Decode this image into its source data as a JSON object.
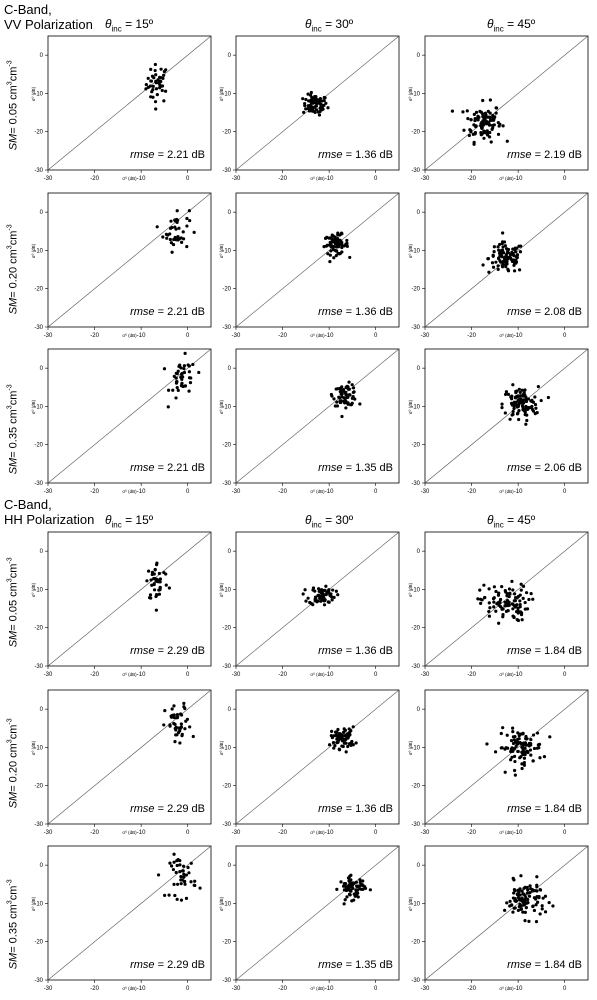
{
  "figure": {
    "sections": [
      {
        "band": "C-Band,",
        "polarization": "VV Polarization",
        "theta_symbol": "θ",
        "theta_sub": "inc",
        "columns": [
          " = 15º",
          " = 30º",
          " = 45º"
        ],
        "rows": [
          {
            "sm_label": "SM",
            "sm_value": "= 0.05 cm",
            "sm_exp": "3",
            "sm_unit": "cm",
            "sm_exp2": "-3"
          },
          {
            "sm_label": "SM",
            "sm_value": "= 0.20 cm",
            "sm_exp": "3",
            "sm_unit": "cm",
            "sm_exp2": "-3"
          },
          {
            "sm_label": "SM",
            "sm_value": "= 0.35 cm",
            "sm_exp": "3",
            "sm_unit": "cm",
            "sm_exp2": "-3"
          }
        ]
      },
      {
        "band": "C-Band,",
        "polarization": "HH Polarization",
        "theta_symbol": "θ",
        "theta_sub": "inc",
        "columns": [
          " = 15º",
          " = 30º",
          " = 45º"
        ],
        "rows": [
          {
            "sm_label": "SM",
            "sm_value": "= 0.05 cm",
            "sm_exp": "3",
            "sm_unit": "cm",
            "sm_exp2": "-3"
          },
          {
            "sm_label": "SM",
            "sm_value": "= 0.20 cm",
            "sm_exp": "3",
            "sm_unit": "cm",
            "sm_exp2": "-3"
          },
          {
            "sm_label": "SM",
            "sm_value": "= 0.35 cm",
            "sm_exp": "3",
            "sm_unit": "cm",
            "sm_exp2": "-3"
          }
        ]
      }
    ]
  },
  "chart_data": {
    "type": "scatter",
    "xlabel": "σ⁰ (dB)",
    "ylabel": "σ⁰ (dB)",
    "xlim": [
      -30,
      5
    ],
    "ylim": [
      -30,
      5
    ],
    "xticks": [
      -30,
      -20,
      -10,
      0
    ],
    "yticks": [
      0,
      -10,
      -20,
      -30
    ],
    "reference_line": "1:1",
    "rmse_label": "rmse",
    "panels": [
      {
        "section": "VV",
        "sm": "0.05",
        "theta": "15º",
        "rmse": "= 2.21 dB",
        "cluster": {
          "cx": -6.5,
          "cy": -7.5,
          "n": 42,
          "sx": 1.2,
          "sy": 2.5
        }
      },
      {
        "section": "VV",
        "sm": "0.05",
        "theta": "30º",
        "rmse": "= 1.36 dB",
        "cluster": {
          "cx": -13.0,
          "cy": -13.0,
          "n": 70,
          "sx": 1.3,
          "sy": 1.3
        }
      },
      {
        "section": "VV",
        "sm": "0.05",
        "theta": "45º",
        "rmse": "= 2.19 dB",
        "cluster": {
          "cx": -17.5,
          "cy": -17.5,
          "n": 100,
          "sx": 1.9,
          "sy": 2.5
        }
      },
      {
        "section": "VV",
        "sm": "0.20",
        "theta": "15º",
        "rmse": "= 2.21 dB",
        "cluster": {
          "cx": -2.5,
          "cy": -4.5,
          "n": 42,
          "sx": 1.4,
          "sy": 2.8
        }
      },
      {
        "section": "VV",
        "sm": "0.20",
        "theta": "30º",
        "rmse": "= 1.36 dB",
        "cluster": {
          "cx": -8.5,
          "cy": -8.5,
          "n": 70,
          "sx": 1.3,
          "sy": 1.3
        }
      },
      {
        "section": "VV",
        "sm": "0.20",
        "theta": "45º",
        "rmse": "= 2.08 dB",
        "cluster": {
          "cx": -12.5,
          "cy": -12.0,
          "n": 100,
          "sx": 1.9,
          "sy": 2.0
        }
      },
      {
        "section": "VV",
        "sm": "0.35",
        "theta": "15º",
        "rmse": "= 2.21 dB",
        "cluster": {
          "cx": -1.0,
          "cy": -3.0,
          "n": 42,
          "sx": 1.4,
          "sy": 2.8
        }
      },
      {
        "section": "VV",
        "sm": "0.35",
        "theta": "30º",
        "rmse": "= 1.35 dB",
        "cluster": {
          "cx": -6.5,
          "cy": -7.0,
          "n": 70,
          "sx": 1.3,
          "sy": 1.4
        }
      },
      {
        "section": "VV",
        "sm": "0.35",
        "theta": "45º",
        "rmse": "= 2.06 dB",
        "cluster": {
          "cx": -9.5,
          "cy": -9.5,
          "n": 100,
          "sx": 1.9,
          "sy": 2.3
        }
      },
      {
        "section": "HH",
        "sm": "0.05",
        "theta": "15º",
        "rmse": "= 2.29 dB",
        "cluster": {
          "cx": -6.5,
          "cy": -8.0,
          "n": 42,
          "sx": 1.2,
          "sy": 2.6
        }
      },
      {
        "section": "HH",
        "sm": "0.05",
        "theta": "30º",
        "rmse": "= 1.36 dB",
        "cluster": {
          "cx": -11.5,
          "cy": -11.5,
          "n": 70,
          "sx": 1.4,
          "sy": 1.3
        }
      },
      {
        "section": "HH",
        "sm": "0.05",
        "theta": "45º",
        "rmse": "= 1.84 dB",
        "cluster": {
          "cx": -13.0,
          "cy": -13.5,
          "n": 100,
          "sx": 2.6,
          "sy": 2.4
        }
      },
      {
        "section": "HH",
        "sm": "0.20",
        "theta": "15º",
        "rmse": "= 2.29 dB",
        "cluster": {
          "cx": -2.0,
          "cy": -4.5,
          "n": 42,
          "sx": 1.4,
          "sy": 2.8
        }
      },
      {
        "section": "HH",
        "sm": "0.20",
        "theta": "30º",
        "rmse": "= 1.36 dB",
        "cluster": {
          "cx": -7.0,
          "cy": -7.5,
          "n": 70,
          "sx": 1.3,
          "sy": 1.4
        }
      },
      {
        "section": "HH",
        "sm": "0.20",
        "theta": "45º",
        "rmse": "= 1.84 dB",
        "cluster": {
          "cx": -9.5,
          "cy": -10.0,
          "n": 100,
          "sx": 2.4,
          "sy": 2.3
        }
      },
      {
        "section": "HH",
        "sm": "0.35",
        "theta": "15º",
        "rmse": "= 2.29 dB",
        "cluster": {
          "cx": -1.0,
          "cy": -3.0,
          "n": 42,
          "sx": 1.4,
          "sy": 2.8
        }
      },
      {
        "section": "HH",
        "sm": "0.35",
        "theta": "30º",
        "rmse": "= 1.35 dB",
        "cluster": {
          "cx": -5.0,
          "cy": -6.0,
          "n": 70,
          "sx": 1.4,
          "sy": 1.4
        }
      },
      {
        "section": "HH",
        "sm": "0.35",
        "theta": "45º",
        "rmse": "= 1.84 dB",
        "cluster": {
          "cx": -8.5,
          "cy": -9.0,
          "n": 100,
          "sx": 2.2,
          "sy": 2.3
        }
      }
    ]
  }
}
